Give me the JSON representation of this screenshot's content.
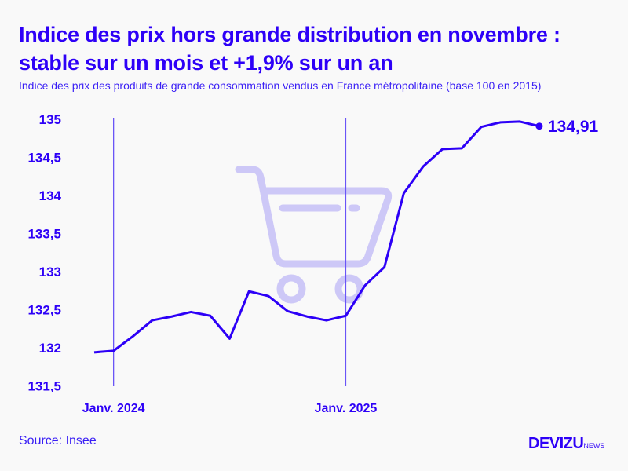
{
  "title_line1": "Indice des prix hors grande distribution en novembre :",
  "title_line2": "stable sur un mois et +1,9% sur un an",
  "subtitle": "Indice des prix des produits de grande consommation vendus en France métropolitaine (base 100 en 2015)",
  "source": "Source: Insee",
  "logo": "DEVIZU",
  "logo_suffix": "NEWS",
  "colors": {
    "line": "#2d00f7",
    "icon": "#cdc8f7",
    "background": "#f9f9f9"
  },
  "icon": "shopping-cart-icon",
  "chart_data": {
    "type": "line",
    "x": [
      "2023-12",
      "2024-01",
      "2024-02",
      "2024-03",
      "2024-04",
      "2024-05",
      "2024-06",
      "2024-07",
      "2024-08",
      "2024-09",
      "2024-10",
      "2024-11",
      "2024-12",
      "2025-01",
      "2025-02",
      "2025-03",
      "2025-04",
      "2025-05",
      "2025-06",
      "2025-07",
      "2025-08",
      "2025-09",
      "2025-10",
      "2025-11"
    ],
    "values": [
      131.94,
      131.96,
      132.15,
      132.36,
      132.41,
      132.47,
      132.42,
      132.12,
      132.74,
      132.68,
      132.48,
      132.41,
      132.36,
      132.42,
      132.82,
      133.06,
      134.03,
      134.38,
      134.61,
      134.62,
      134.9,
      134.96,
      134.97,
      134.91
    ],
    "ylim": [
      131.5,
      135
    ],
    "yticks": [
      "135",
      "134,5",
      "134",
      "133,5",
      "133",
      "132,5",
      "132",
      "131,5"
    ],
    "xticks": [
      {
        "label": "Janv. 2024",
        "x": "2024-01"
      },
      {
        "label": "Janv. 2025",
        "x": "2025-01"
      }
    ],
    "last_label": "134,91",
    "grid": false
  }
}
